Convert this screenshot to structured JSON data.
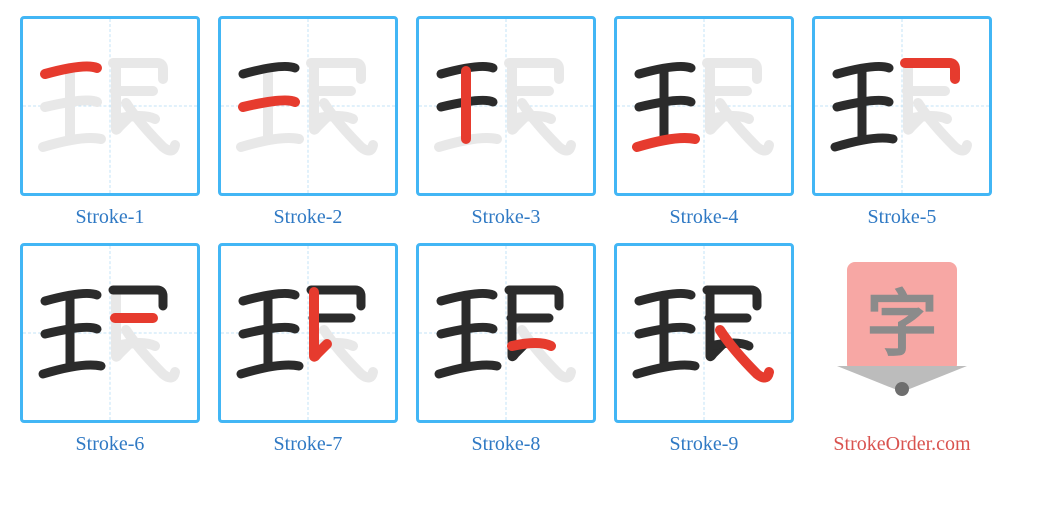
{
  "border_color": "#42b6f5",
  "guide_color": "#c3e3f7",
  "label_color": "#2f79c4",
  "logo_label_color": "#d9534f",
  "prev_stroke_color": "#2b2b2b",
  "prev_stroke_width": 9,
  "current_stroke_color": "#e63b2e",
  "current_stroke_width": 10,
  "ghost_stroke_color": "#e8e8e8",
  "ghost_stroke_width": 10,
  "strokes": [
    "M22 55 Q62 44 74 49",
    "M22 88 Q64 78 74 83",
    "M47 52 L47 120",
    "M20 128 Q60 116 78 120",
    "M90 44 L134 44 Q140 44 140 50 L140 60",
    "M92 72 L130 72",
    "M93 46 L93 110 Q93 112 96 108 L106 98",
    "M93 100 Q120 94 132 100",
    "M103 84 Q116 104 140 128 Q150 136 152 126"
  ],
  "cells": [
    {
      "label": "Stroke-1",
      "current": 1
    },
    {
      "label": "Stroke-2",
      "current": 2
    },
    {
      "label": "Stroke-3",
      "current": 3
    },
    {
      "label": "Stroke-4",
      "current": 4
    },
    {
      "label": "Stroke-5",
      "current": 5
    },
    {
      "label": "Stroke-6",
      "current": 6
    },
    {
      "label": "Stroke-7",
      "current": 7
    },
    {
      "label": "Stroke-8",
      "current": 8
    },
    {
      "label": "Stroke-9",
      "current": 9
    }
  ],
  "logo": {
    "char": "字",
    "site": "StrokeOrder.com",
    "bg_color": "#f7a7a4",
    "char_color": "#8b8b8b",
    "tip_color": "#bcbcbc",
    "lead_color": "#6e6e6e"
  }
}
